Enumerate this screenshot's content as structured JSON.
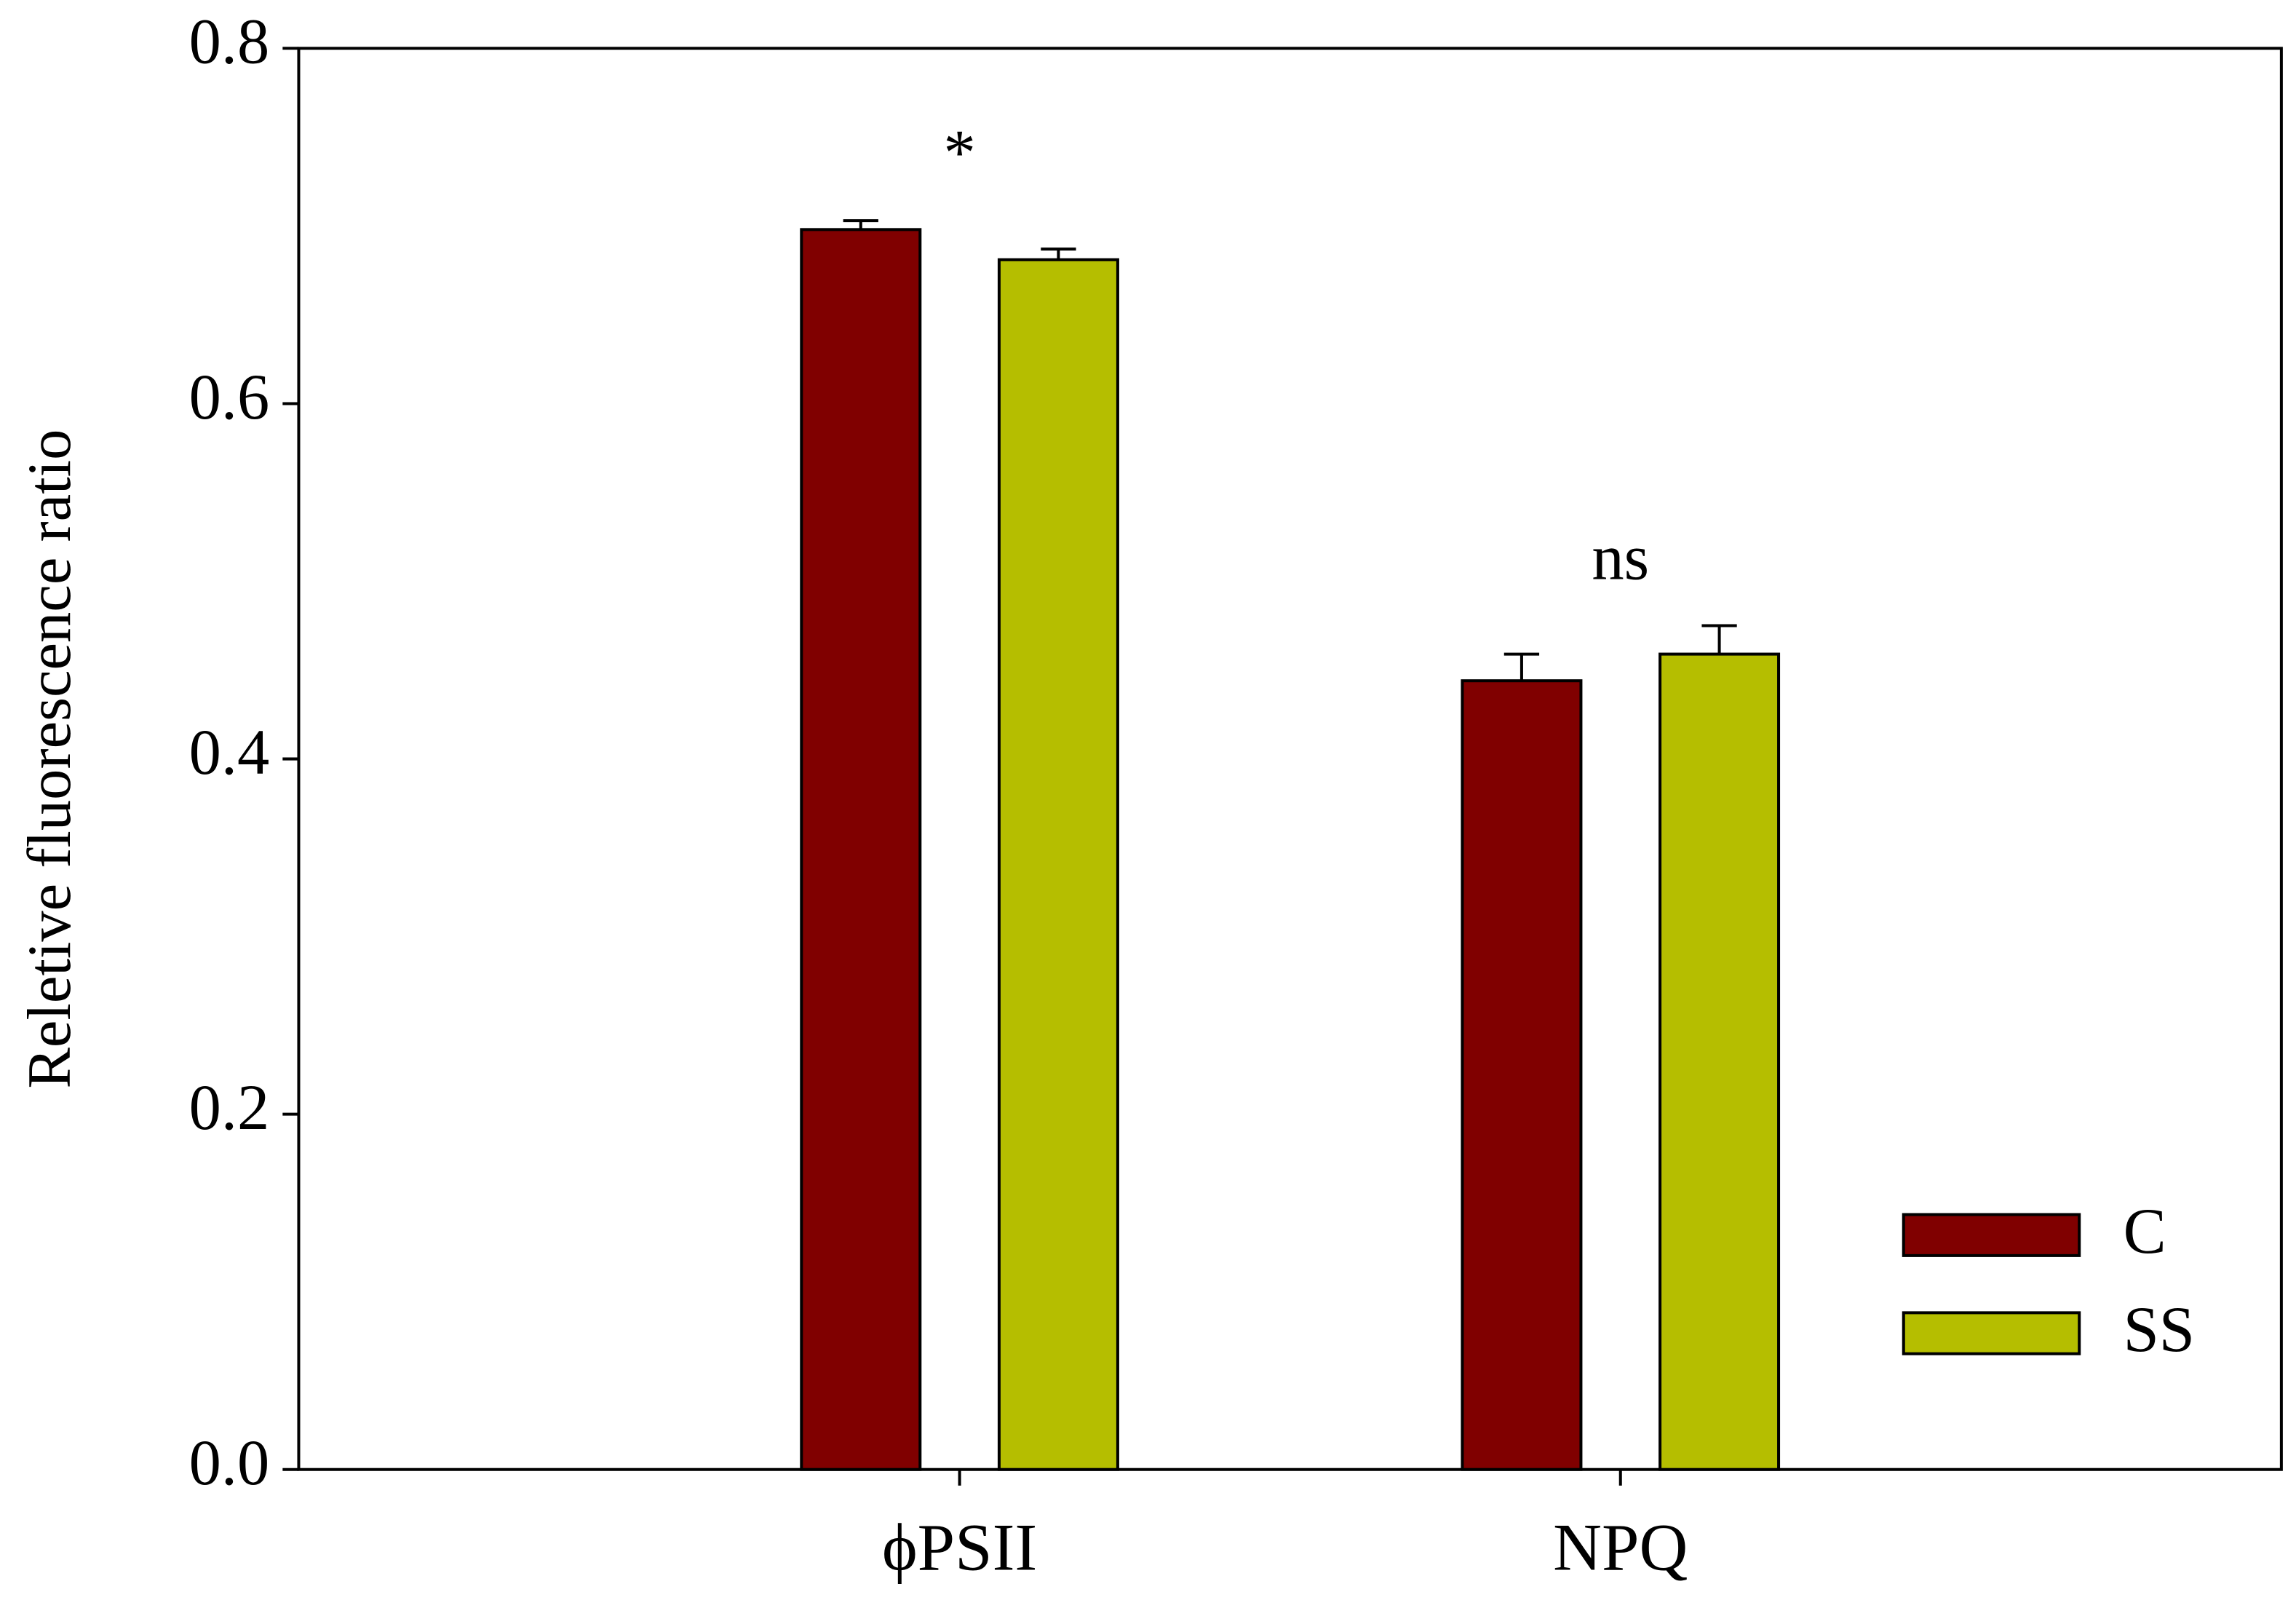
{
  "chart_data": {
    "type": "bar",
    "ylabel": "Reletive fluorescence ratio",
    "categories": [
      "ϕPSII",
      "NPQ"
    ],
    "series": [
      {
        "name": "C",
        "color": "#800000",
        "values": [
          0.698,
          0.444
        ],
        "errors": [
          0.005,
          0.015
        ]
      },
      {
        "name": "SS",
        "color": "#b5be00",
        "values": [
          0.681,
          0.459
        ],
        "errors": [
          0.006,
          0.016
        ]
      }
    ],
    "annotations": [
      "*",
      "ns"
    ],
    "ylim": [
      0,
      0.8
    ],
    "yticks": [
      {
        "value": 0,
        "label": "0.0"
      },
      0.2,
      0.4,
      0.6,
      0.8
    ],
    "legend": "lower right",
    "grid": false
  }
}
